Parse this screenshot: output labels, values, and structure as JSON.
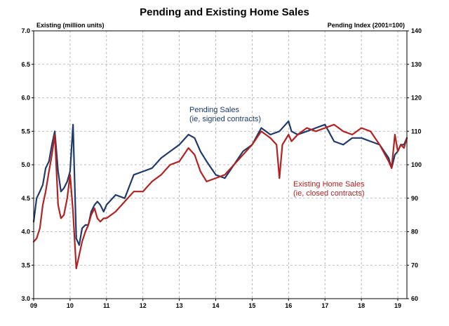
{
  "chart_data": {
    "type": "line",
    "title": "Pending and Existing Home Sales",
    "left_axis_label": "Existing (million units)",
    "right_axis_label": "Pending Index (2001=100)",
    "left_ylim": [
      3.0,
      7.0
    ],
    "left_ticks": [
      "3.0",
      "3.5",
      "4.0",
      "4.5",
      "5.0",
      "5.5",
      "6.0",
      "6.5",
      "7.0"
    ],
    "right_ylim": [
      60,
      140
    ],
    "right_ticks": [
      "60",
      "70",
      "80",
      "90",
      "100",
      "110",
      "120",
      "130",
      "140"
    ],
    "xlim": [
      2009.0,
      2019.25
    ],
    "x_ticks": [
      "09",
      "10",
      "11",
      "12",
      "13",
      "14",
      "15",
      "16",
      "17",
      "18",
      "19"
    ],
    "grid": true,
    "annotations": {
      "pending_line1": "Pending Sales",
      "pending_line2": "(ie, signed contracts)",
      "existing_line1": "Existing Home Sales",
      "existing_line2": "(ie, closed contracts)"
    },
    "series": [
      {
        "axis": "right",
        "color": "#1f3a6b",
        "x": [
          2009.0,
          2009.08,
          2009.17,
          2009.25,
          2009.33,
          2009.42,
          2009.5,
          2009.58,
          2009.67,
          2009.75,
          2009.83,
          2009.92,
          2010.0,
          2010.08,
          2010.17,
          2010.25,
          2010.33,
          2010.42,
          2010.5,
          2010.58,
          2010.67,
          2010.75,
          2010.83,
          2010.92,
          2011.0,
          2011.25,
          2011.5,
          2011.75,
          2012.0,
          2012.25,
          2012.5,
          2012.75,
          2013.0,
          2013.25,
          2013.42,
          2013.58,
          2013.75,
          2014.0,
          2014.25,
          2014.5,
          2014.75,
          2015.0,
          2015.25,
          2015.5,
          2015.75,
          2016.0,
          2016.08,
          2016.25,
          2016.5,
          2016.75,
          2017.0,
          2017.25,
          2017.5,
          2017.75,
          2018.0,
          2018.25,
          2018.5,
          2018.75,
          2018.83,
          2018.92,
          2019.0,
          2019.08,
          2019.17,
          2019.25
        ],
        "y": [
          83,
          90,
          92,
          94,
          99,
          101,
          106,
          110,
          98,
          92,
          93,
          95,
          98,
          112,
          78,
          76,
          81,
          82,
          82,
          86,
          88,
          89,
          88,
          86,
          88,
          91,
          90,
          97,
          98,
          99,
          102,
          104,
          106,
          109,
          108,
          104,
          101,
          97,
          96,
          100,
          104,
          106,
          111,
          109,
          110,
          113,
          110,
          109,
          110,
          111,
          112,
          107,
          106,
          108,
          108,
          107,
          106,
          102,
          99,
          103,
          104,
          106,
          106,
          108
        ]
      },
      {
        "axis": "left",
        "color": "#b22222",
        "x": [
          2009.0,
          2009.08,
          2009.17,
          2009.25,
          2009.33,
          2009.42,
          2009.5,
          2009.58,
          2009.67,
          2009.75,
          2009.83,
          2009.92,
          2010.0,
          2010.08,
          2010.17,
          2010.25,
          2010.33,
          2010.42,
          2010.5,
          2010.58,
          2010.67,
          2010.75,
          2010.83,
          2010.92,
          2011.0,
          2011.25,
          2011.5,
          2011.75,
          2012.0,
          2012.25,
          2012.5,
          2012.75,
          2013.0,
          2013.25,
          2013.42,
          2013.58,
          2013.75,
          2014.0,
          2014.25,
          2014.5,
          2014.75,
          2015.0,
          2015.25,
          2015.5,
          2015.67,
          2015.75,
          2015.83,
          2016.0,
          2016.08,
          2016.25,
          2016.5,
          2016.75,
          2017.0,
          2017.25,
          2017.5,
          2017.75,
          2018.0,
          2018.25,
          2018.5,
          2018.75,
          2018.83,
          2018.92,
          2019.0,
          2019.08,
          2019.17,
          2019.25
        ],
        "y": [
          3.85,
          3.9,
          4.05,
          4.4,
          4.6,
          4.9,
          5.15,
          5.45,
          4.4,
          4.2,
          4.25,
          4.5,
          4.85,
          4.3,
          3.45,
          3.65,
          3.85,
          4.0,
          4.1,
          4.25,
          4.35,
          4.2,
          4.15,
          4.2,
          4.2,
          4.3,
          4.45,
          4.6,
          4.6,
          4.75,
          4.85,
          5.0,
          5.05,
          5.25,
          5.15,
          4.9,
          4.75,
          4.8,
          4.85,
          5.0,
          5.15,
          5.3,
          5.5,
          5.4,
          5.3,
          4.8,
          5.3,
          5.45,
          5.35,
          5.45,
          5.55,
          5.5,
          5.55,
          5.6,
          5.5,
          5.45,
          5.55,
          5.5,
          5.3,
          5.05,
          4.95,
          5.45,
          5.2,
          5.3,
          5.25,
          5.4
        ]
      }
    ]
  }
}
